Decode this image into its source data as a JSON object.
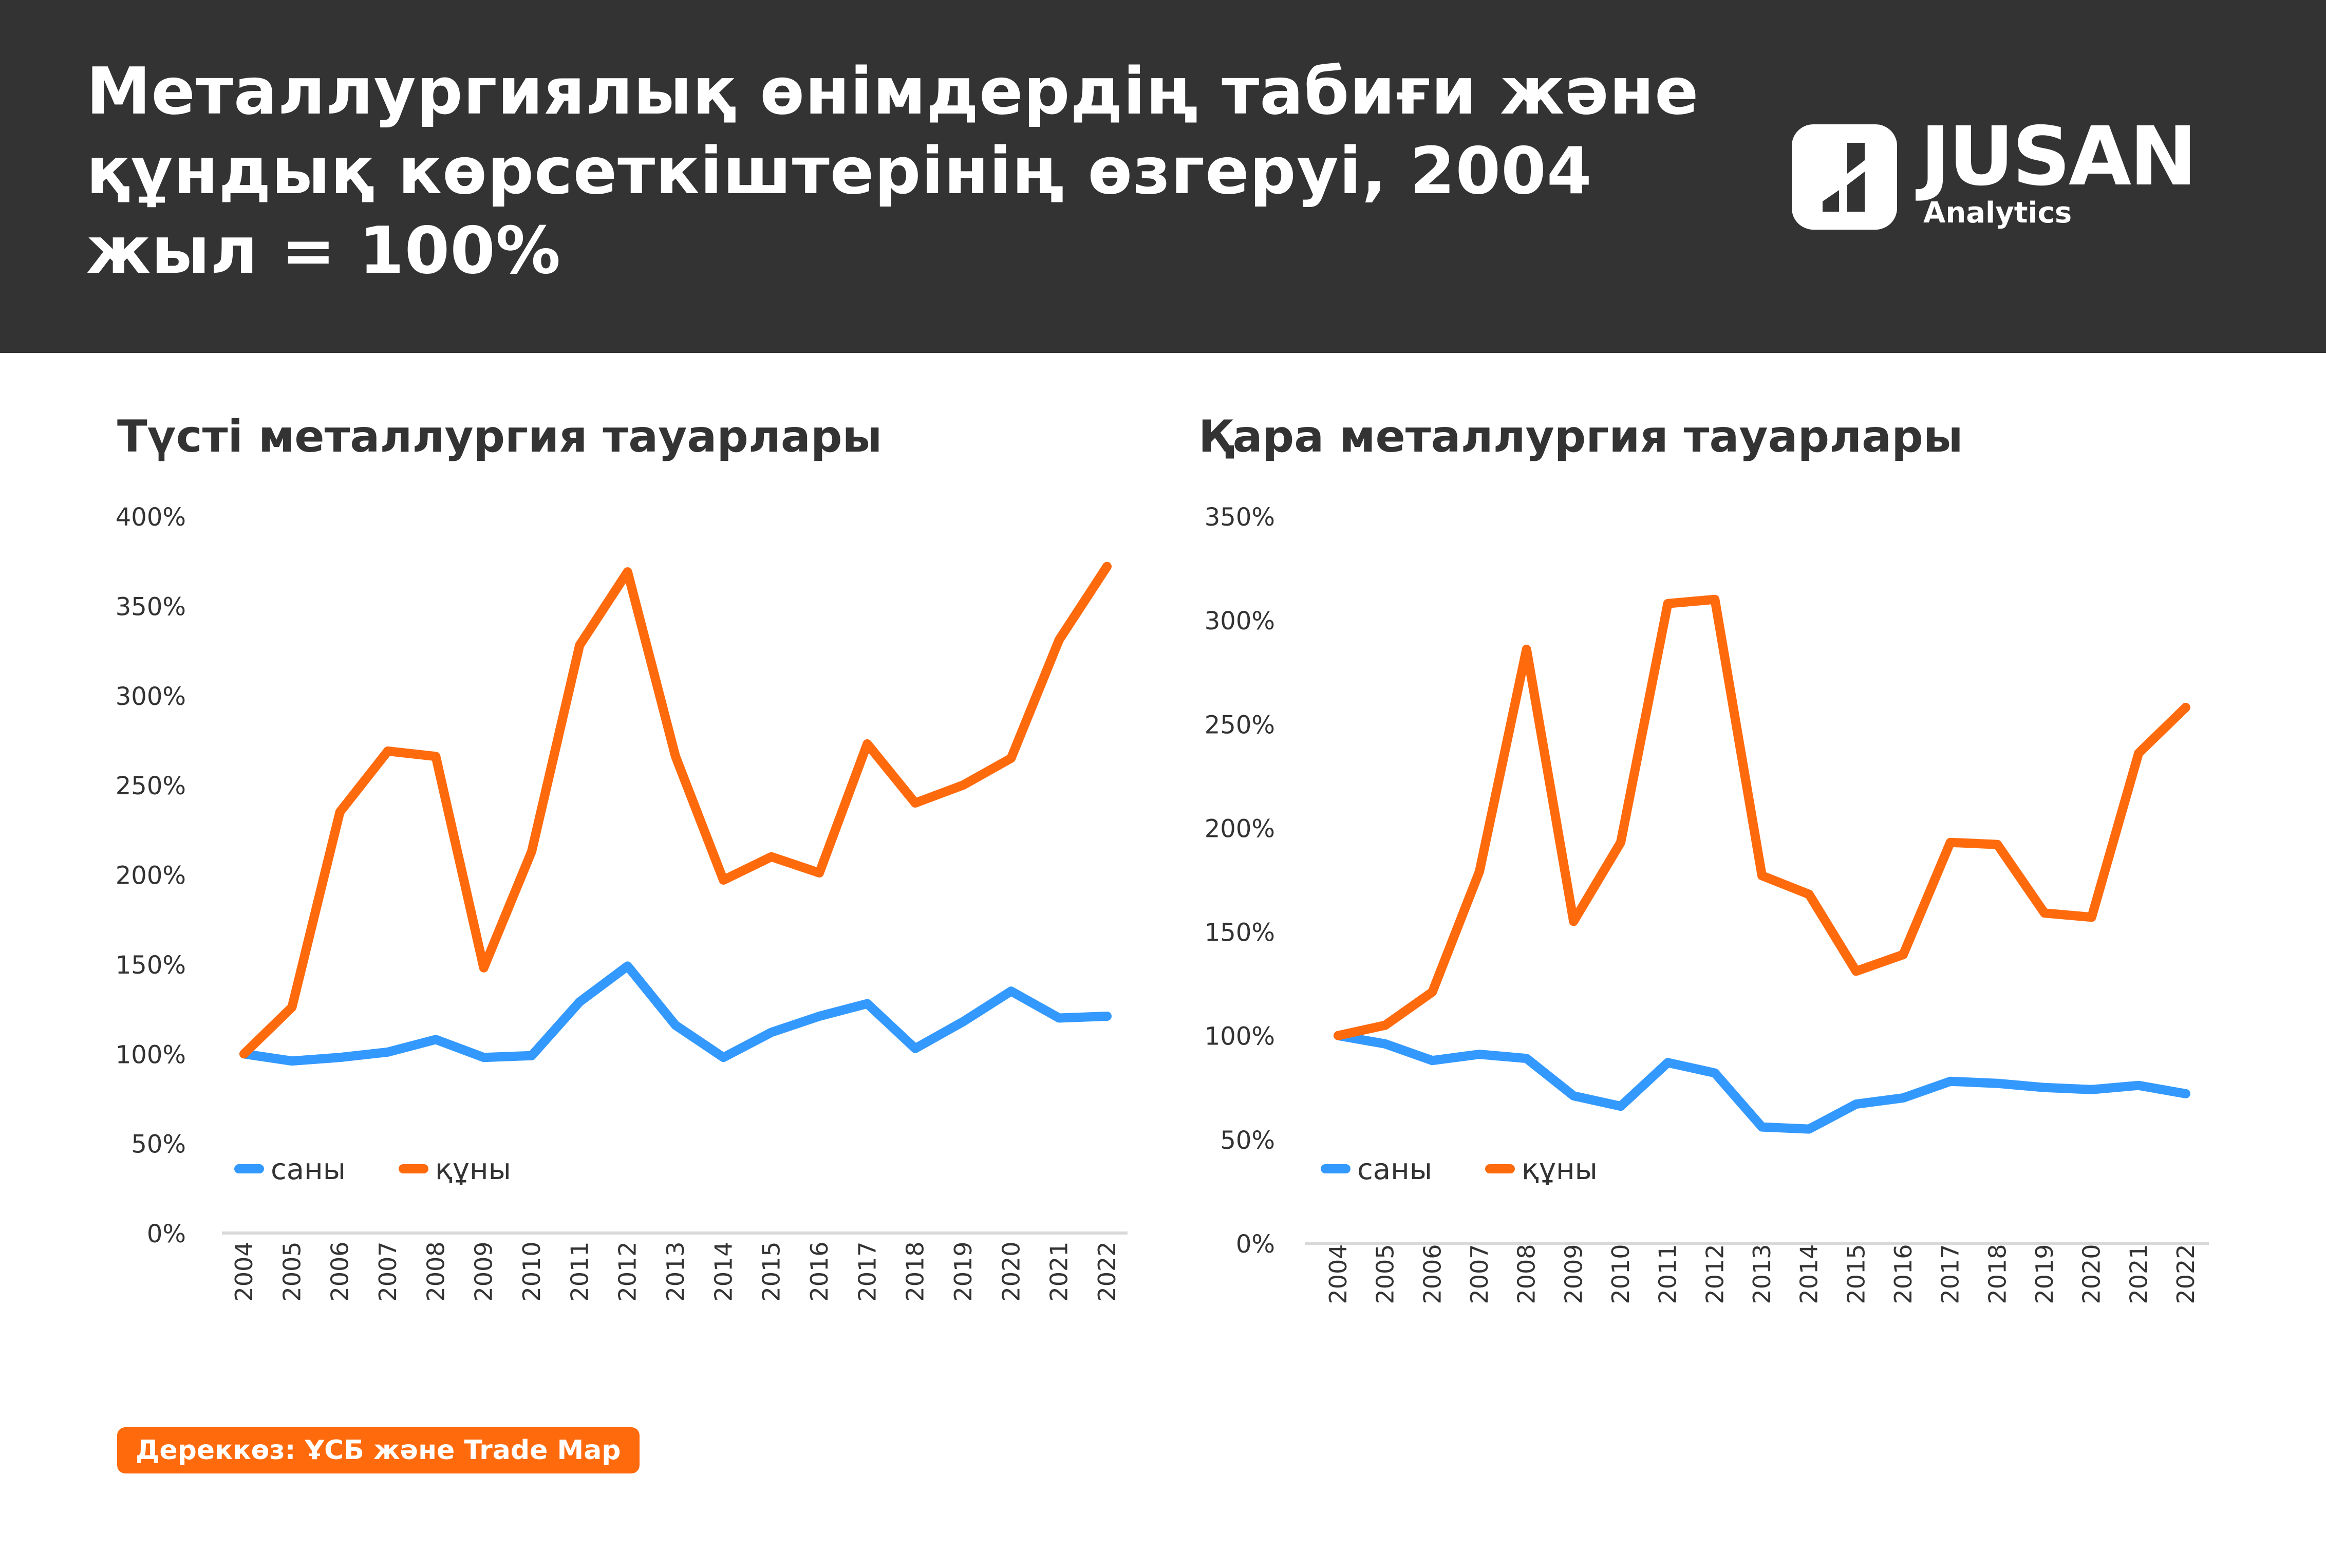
{
  "header": {
    "title": "Металлургиялық өнімдердің табиғи және құндық көрсеткіштерінің өзгеруі, 2004 жыл = 100%"
  },
  "logo": {
    "name": "JUSAN",
    "subtitle": "Analytics"
  },
  "colors": {
    "header_bg": "#333333",
    "series_quantity": "#3399ff",
    "series_value": "#ff6a0d",
    "axis": "#d9d9d9",
    "text": "#333333"
  },
  "source": "Дереккөз: ҰСБ және Trade Map",
  "chart_data": [
    {
      "type": "line",
      "title": "Түсті металлургия тауарлары",
      "categories": [
        "2004",
        "2005",
        "2006",
        "2007",
        "2008",
        "2009",
        "2010",
        "2011",
        "2012",
        "2013",
        "2014",
        "2015",
        "2016",
        "2017",
        "2018",
        "2019",
        "2020",
        "2021",
        "2022"
      ],
      "ylim": [
        0,
        400
      ],
      "yticks": [
        "0%",
        "50%",
        "100%",
        "150%",
        "200%",
        "250%",
        "300%",
        "350%",
        "400%"
      ],
      "grid": false,
      "legend_position": "bottom-left",
      "series": [
        {
          "name": "саны",
          "color": "#3399ff",
          "values": [
            100,
            96,
            98,
            101,
            108,
            98,
            99,
            129,
            149,
            116,
            98,
            112,
            121,
            128,
            103,
            118,
            135,
            120,
            121
          ]
        },
        {
          "name": "құны",
          "color": "#ff6a0d",
          "values": [
            100,
            126,
            235,
            269,
            266,
            148,
            213,
            328,
            369,
            266,
            197,
            210,
            201,
            273,
            240,
            250,
            265,
            331,
            372
          ]
        }
      ]
    },
    {
      "type": "line",
      "title": "Қара металлургия тауарлары",
      "categories": [
        "2004",
        "2005",
        "2006",
        "2007",
        "2008",
        "2009",
        "2010",
        "2011",
        "2012",
        "2013",
        "2014",
        "2015",
        "2016",
        "2017",
        "2018",
        "2019",
        "2020",
        "2021",
        "2022"
      ],
      "ylim": [
        0,
        350
      ],
      "yticks": [
        "0%",
        "50%",
        "100%",
        "150%",
        "200%",
        "250%",
        "300%",
        "350%"
      ],
      "grid": false,
      "legend_position": "bottom-left",
      "series": [
        {
          "name": "саны",
          "color": "#3399ff",
          "values": [
            100,
            96,
            88,
            91,
            89,
            71,
            66,
            87,
            82,
            56,
            55,
            67,
            70,
            78,
            77,
            75,
            74,
            76,
            72
          ]
        },
        {
          "name": "құны",
          "color": "#ff6a0d",
          "values": [
            100,
            105,
            121,
            179,
            286,
            155,
            193,
            308,
            310,
            177,
            168,
            131,
            139,
            193,
            192,
            159,
            157,
            236,
            258
          ]
        }
      ]
    }
  ]
}
